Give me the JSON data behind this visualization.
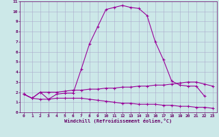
{
  "xlabel": "Windchill (Refroidissement éolien,°C)",
  "x_values": [
    0,
    1,
    2,
    3,
    4,
    5,
    6,
    7,
    8,
    9,
    10,
    11,
    12,
    13,
    14,
    15,
    16,
    17,
    18,
    19,
    20,
    21,
    22,
    23
  ],
  "line1": [
    1.8,
    1.4,
    2.0,
    1.3,
    1.8,
    1.9,
    1.9,
    4.3,
    6.8,
    8.5,
    10.2,
    10.4,
    10.6,
    10.4,
    10.3,
    9.6,
    7.0,
    5.2,
    3.1,
    2.7,
    2.6,
    2.6,
    1.6,
    null
  ],
  "line2": [
    1.8,
    1.4,
    2.0,
    2.0,
    2.0,
    2.1,
    2.2,
    2.2,
    2.3,
    2.3,
    2.4,
    2.4,
    2.5,
    2.5,
    2.6,
    2.6,
    2.7,
    2.7,
    2.8,
    2.9,
    3.0,
    3.0,
    2.8,
    2.6
  ],
  "line3": [
    1.8,
    1.4,
    1.3,
    1.3,
    1.4,
    1.4,
    1.4,
    1.4,
    1.3,
    1.2,
    1.1,
    1.0,
    0.9,
    0.9,
    0.8,
    0.8,
    0.8,
    0.7,
    0.7,
    0.6,
    0.6,
    0.5,
    0.5,
    0.4
  ],
  "line_color": "#990099",
  "bg_color": "#cce8e8",
  "grid_color": "#aaaacc",
  "text_color": "#660066",
  "ylim": [
    0,
    11
  ],
  "xlim": [
    -0.5,
    23.5
  ]
}
